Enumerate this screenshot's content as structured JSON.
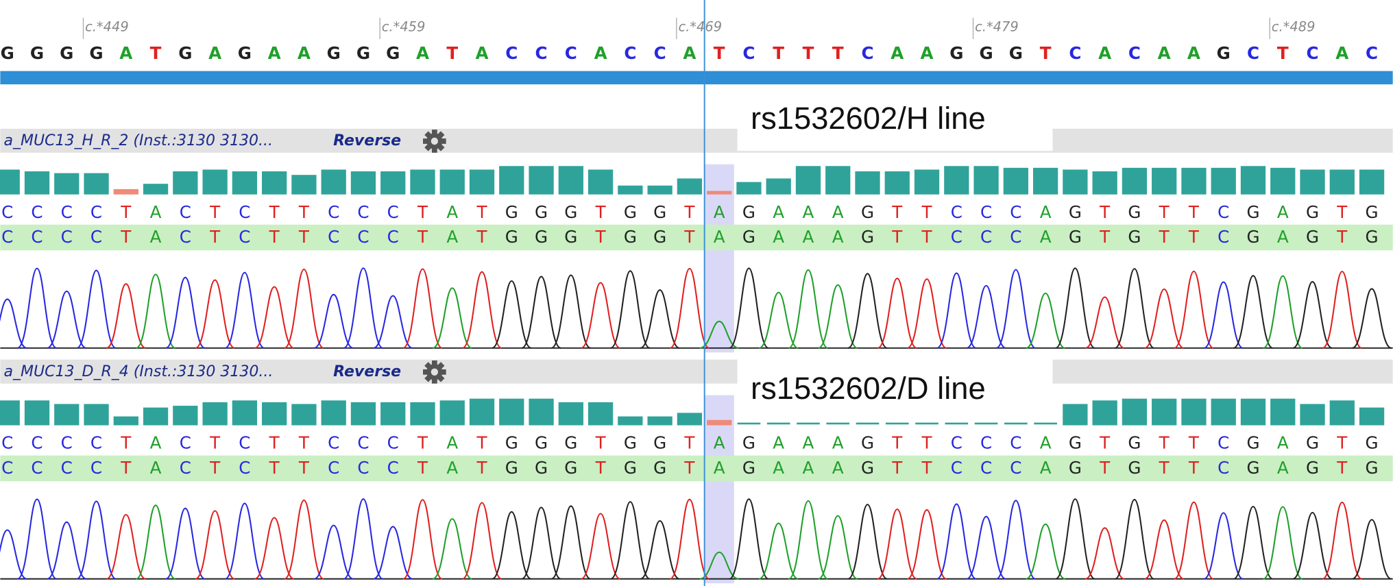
{
  "reference": {
    "ticks": [
      "c.*449",
      "c.*459",
      "c.*469",
      "c.*479",
      "c.*489"
    ],
    "bases": [
      "G",
      "G",
      "G",
      "G",
      "A",
      "T",
      "G",
      "A",
      "G",
      "A",
      "A",
      "G",
      "G",
      "G",
      "A",
      "T",
      "A",
      "C",
      "C",
      "C",
      "A",
      "C",
      "C",
      "A",
      "T",
      "C",
      "T",
      "T",
      "T",
      "C",
      "A",
      "A",
      "G",
      "G",
      "G",
      "T",
      "C",
      "A",
      "C",
      "A",
      "A",
      "G",
      "C",
      "T",
      "C",
      "A",
      "C"
    ]
  },
  "tracks": [
    {
      "name": "a_MUC13_H_R_2 (Inst.:3130 3130...",
      "direction": "Reverse",
      "annotation": "rs1532602/H line",
      "bases": [
        "C",
        "C",
        "C",
        "C",
        "T",
        "A",
        "C",
        "T",
        "C",
        "T",
        "T",
        "C",
        "C",
        "C",
        "T",
        "A",
        "T",
        "G",
        "G",
        "G",
        "T",
        "G",
        "G",
        "T",
        "A",
        "G",
        "A",
        "A",
        "A",
        "G",
        "T",
        "T",
        "C",
        "C",
        "C",
        "A",
        "G",
        "T",
        "G",
        "T",
        "T",
        "C",
        "G",
        "A",
        "G",
        "T",
        "G"
      ],
      "consensus": [
        "C",
        "C",
        "C",
        "C",
        "T",
        "A",
        "C",
        "T",
        "C",
        "T",
        "T",
        "C",
        "C",
        "C",
        "T",
        "A",
        "T",
        "G",
        "G",
        "G",
        "T",
        "G",
        "G",
        "T",
        "A",
        "G",
        "A",
        "A",
        "A",
        "G",
        "T",
        "T",
        "C",
        "C",
        "C",
        "A",
        "G",
        "T",
        "G",
        "T",
        "T",
        "C",
        "G",
        "A",
        "G",
        "T",
        "G"
      ],
      "quality": [
        28,
        26,
        24,
        24,
        6,
        12,
        26,
        28,
        26,
        26,
        22,
        28,
        26,
        26,
        28,
        28,
        28,
        32,
        32,
        32,
        28,
        10,
        10,
        18,
        4,
        14,
        18,
        32,
        32,
        26,
        26,
        28,
        32,
        32,
        30,
        30,
        28,
        26,
        30,
        30,
        30,
        30,
        32,
        30,
        28,
        28,
        28
      ]
    },
    {
      "name": "a_MUC13_D_R_4 (Inst.:3130 3130...",
      "direction": "Reverse",
      "annotation": "rs1532602/D line",
      "bases": [
        "C",
        "C",
        "C",
        "C",
        "T",
        "A",
        "C",
        "T",
        "C",
        "T",
        "T",
        "C",
        "C",
        "C",
        "T",
        "A",
        "T",
        "G",
        "G",
        "G",
        "T",
        "G",
        "G",
        "T",
        "A",
        "G",
        "A",
        "A",
        "A",
        "G",
        "T",
        "T",
        "C",
        "C",
        "C",
        "A",
        "G",
        "T",
        "G",
        "T",
        "T",
        "C",
        "G",
        "A",
        "G",
        "T",
        "G"
      ],
      "consensus": [
        "C",
        "C",
        "C",
        "C",
        "T",
        "A",
        "C",
        "T",
        "C",
        "T",
        "T",
        "C",
        "C",
        "C",
        "T",
        "A",
        "T",
        "G",
        "G",
        "G",
        "T",
        "G",
        "G",
        "T",
        "A",
        "G",
        "A",
        "A",
        "A",
        "G",
        "T",
        "T",
        "C",
        "C",
        "C",
        "A",
        "G",
        "T",
        "G",
        "T",
        "T",
        "C",
        "G",
        "A",
        "G",
        "T",
        "G"
      ],
      "quality": [
        28,
        28,
        24,
        24,
        10,
        20,
        22,
        26,
        28,
        26,
        24,
        28,
        26,
        26,
        26,
        28,
        30,
        30,
        30,
        26,
        26,
        10,
        10,
        14,
        6,
        null,
        null,
        null,
        null,
        null,
        null,
        null,
        null,
        null,
        null,
        null,
        24,
        28,
        30,
        30,
        30,
        30,
        30,
        30,
        24,
        28,
        20
      ]
    }
  ]
}
